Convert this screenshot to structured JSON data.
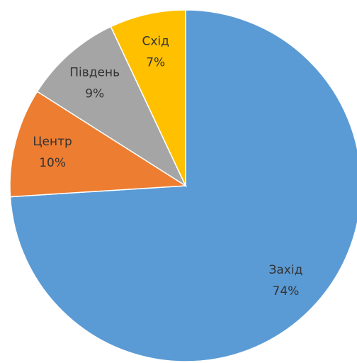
{
  "chart_data": {
    "type": "pie",
    "categories": [
      "Захід",
      "Центр",
      "Південь",
      "Схід"
    ],
    "values": [
      74,
      10,
      9,
      7
    ],
    "value_labels": [
      "74%",
      "10%",
      "9%",
      "7%"
    ],
    "colors": [
      "#5b9bd5",
      "#ed7d31",
      "#a5a5a5",
      "#ffc000"
    ]
  }
}
